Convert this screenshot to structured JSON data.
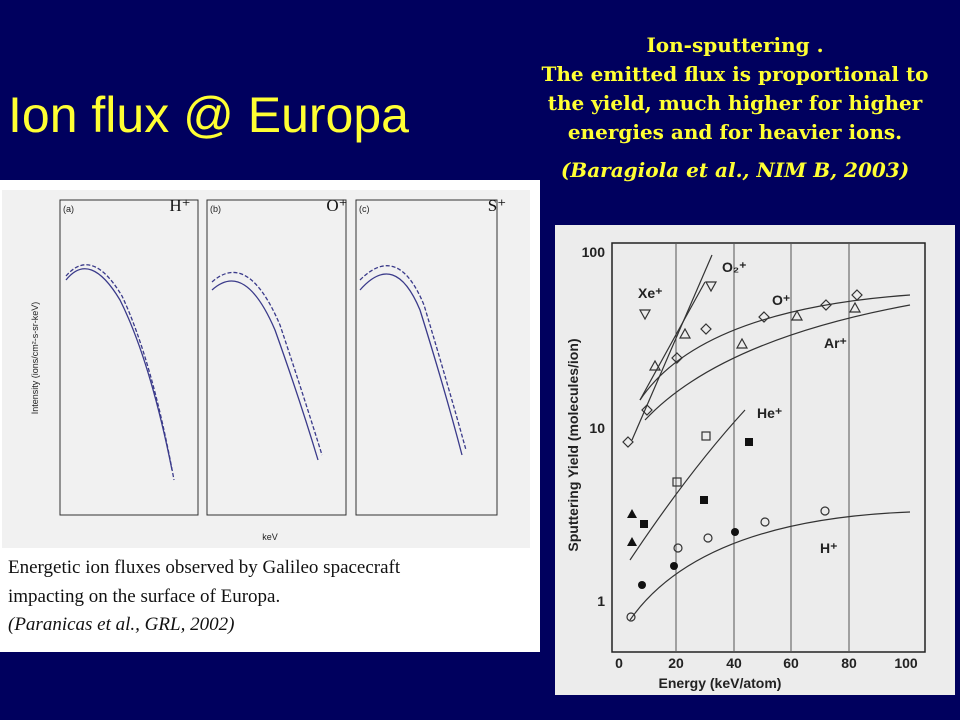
{
  "slide": {
    "title": "Ion flux @ Europa",
    "annotation": [
      "Ion-sputtering .",
      "The emitted flux is proportional to",
      "the yield, much higher for higher",
      "energies and for heavier ions.",
      "(Baragiola et al., NIM B, 2003)"
    ],
    "left_figure": {
      "panel_labels": [
        "H⁺",
        "O⁺",
        "S⁺"
      ],
      "subpanels": [
        "(a)",
        "(b)",
        "(c)"
      ],
      "y_axis_label": "Intensity (ions/cm²-s-sr-keV)",
      "x_axis_label": "keV",
      "caption": [
        "Energetic ion fluxes observed by Galileo spacecraft",
        "impacting on the surface of Europa.",
        "(Paranicas et al., GRL, 2002)"
      ]
    },
    "right_figure": {
      "y_axis_label": "Sputtering Yield (molecules/ion)",
      "x_axis_label": "Energy (keV/atom)",
      "yticks": [
        "100",
        "10",
        "1"
      ],
      "xticks": [
        "0",
        "20",
        "40",
        "60",
        "80",
        "100"
      ],
      "series_labels": [
        "Xe⁺",
        "O₂⁺",
        "O⁺",
        "Ar⁺",
        "He⁺",
        "H⁺"
      ]
    }
  }
}
